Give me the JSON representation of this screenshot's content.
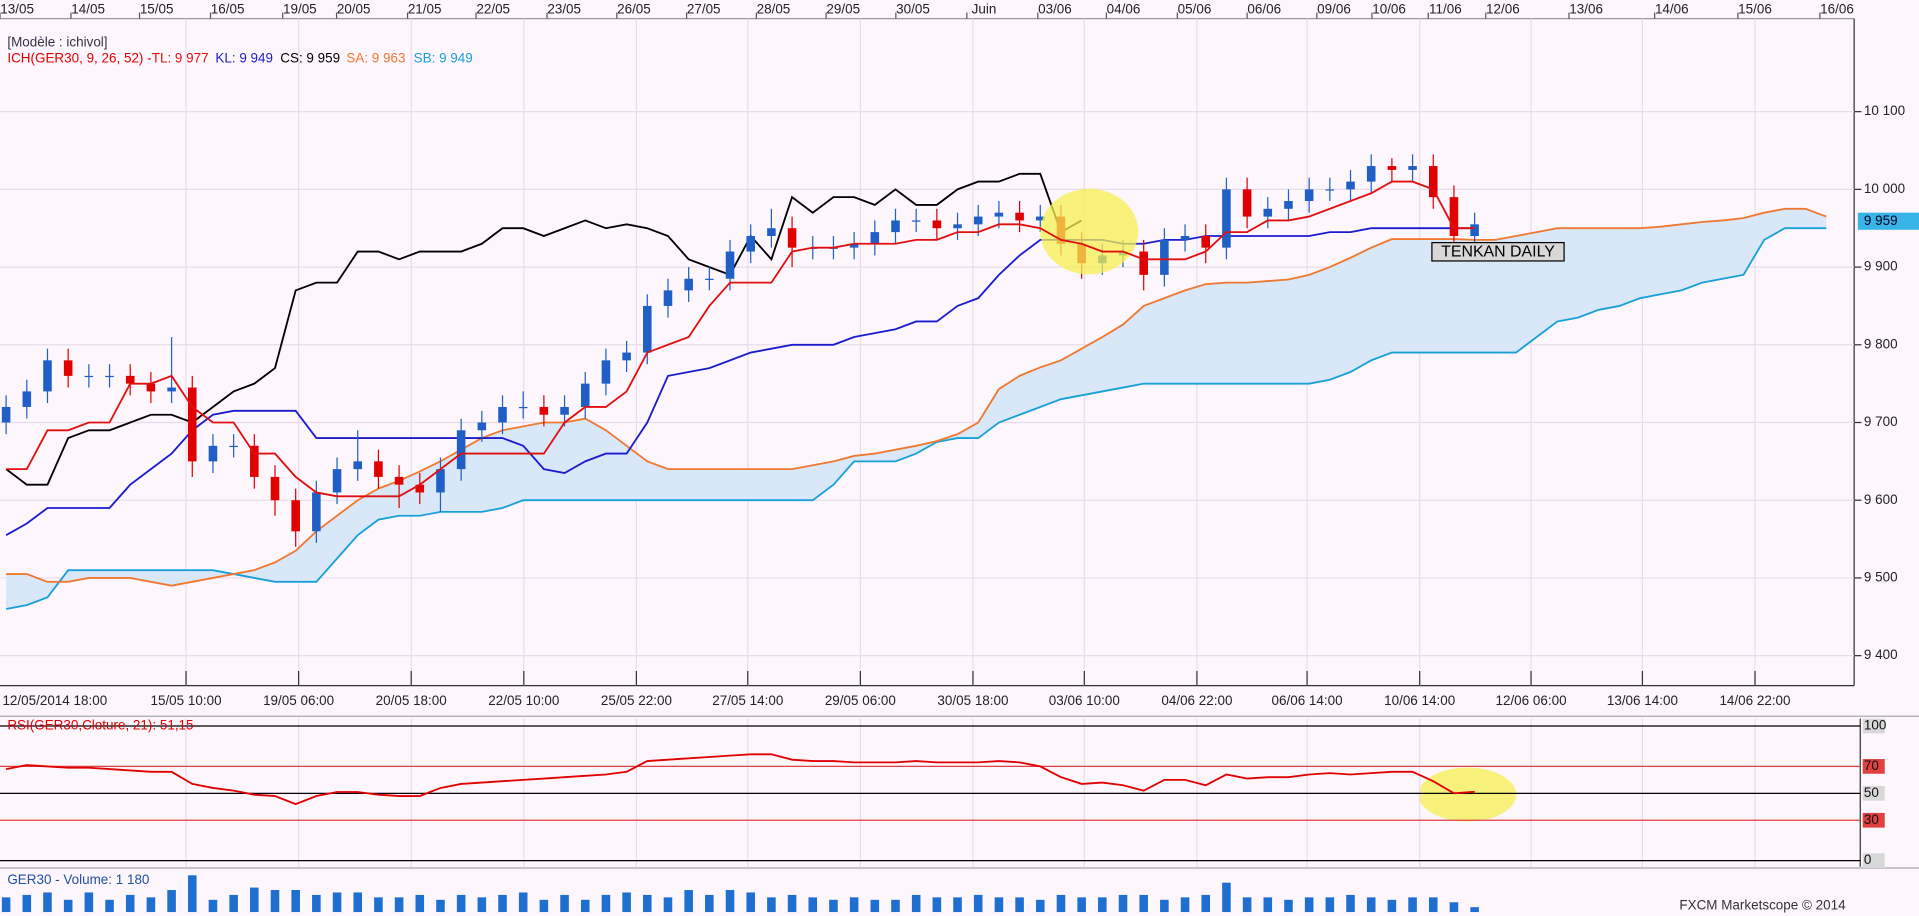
{
  "chart_data": [
    {
      "type": "candlestick",
      "model_label": "[Modèle : ichivol]",
      "legend_prefix": "ICH(GER30, 9, 26, 52) -",
      "top_labels": [
        "13/05",
        "14/05",
        "15/05",
        "16/05",
        "19/05",
        "20/05",
        "21/05",
        "22/05",
        "23/05",
        "26/05",
        "27/05",
        "28/05",
        "29/05",
        "30/05",
        "Juin",
        "03/06",
        "04/06",
        "05/06",
        "06/06",
        "09/06",
        "10/06",
        "11/06",
        "12/06",
        "13/06",
        "14/06",
        "15/06",
        "16/06"
      ],
      "x_labels": [
        "12/05/2014 18:00",
        "15/05 10:00",
        "19/05 06:00",
        "20/05 18:00",
        "22/05 10:00",
        "25/05 22:00",
        "27/05 14:00",
        "29/05 06:00",
        "30/05 18:00",
        "03/06 10:00",
        "04/06 22:00",
        "06/06 14:00",
        "10/06 14:00",
        "12/06 06:00",
        "13/06 14:00",
        "14/06 22:00"
      ],
      "open": [
        9700,
        9720,
        9740,
        9780,
        9760,
        9760,
        9760,
        9750,
        9740,
        9745,
        9650,
        9670,
        9670,
        9630,
        9600,
        9560,
        9610,
        9640,
        9650,
        9630,
        9620,
        9610,
        9640,
        9690,
        9700,
        9720,
        9720,
        9710,
        9720,
        9750,
        9780,
        9790,
        9850,
        9870,
        9885,
        9885,
        9920,
        9940,
        9950,
        9925,
        9925,
        9925,
        9930,
        9945,
        9960,
        9960,
        9950,
        9955,
        9965,
        9970,
        9960,
        9965,
        9930,
        9905,
        9915,
        9920,
        9890,
        9935,
        9940,
        9925,
        10000,
        9965,
        9975,
        9985,
        10000,
        10000,
        10010,
        10030,
        10025,
        10030,
        9990,
        9940
      ],
      "high": [
        9735,
        9755,
        9795,
        9795,
        9775,
        9775,
        9775,
        9765,
        9810,
        9760,
        9685,
        9685,
        9685,
        9645,
        9615,
        9625,
        9655,
        9690,
        9665,
        9645,
        9635,
        9655,
        9705,
        9715,
        9735,
        9740,
        9735,
        9735,
        9765,
        9795,
        9805,
        9865,
        9885,
        9900,
        9900,
        9935,
        9955,
        9975,
        9965,
        9940,
        9940,
        9945,
        9960,
        9975,
        9975,
        9975,
        9970,
        9980,
        9985,
        9985,
        9980,
        9980,
        9945,
        9930,
        9935,
        9935,
        9950,
        9955,
        9955,
        10015,
        10015,
        9990,
        10000,
        10015,
        10015,
        10025,
        10045,
        10040,
        10045,
        10045,
        10005,
        9970
      ],
      "low": [
        9685,
        9705,
        9725,
        9745,
        9745,
        9745,
        9735,
        9725,
        9725,
        9630,
        9635,
        9655,
        9615,
        9580,
        9540,
        9545,
        9595,
        9625,
        9615,
        9590,
        9595,
        9585,
        9625,
        9675,
        9685,
        9705,
        9695,
        9695,
        9705,
        9735,
        9765,
        9775,
        9835,
        9855,
        9870,
        9870,
        9905,
        9925,
        9900,
        9910,
        9910,
        9910,
        9915,
        9930,
        9945,
        9935,
        9935,
        9940,
        9950,
        9945,
        9945,
        9915,
        9885,
        9890,
        9900,
        9870,
        9875,
        9920,
        9905,
        9910,
        9950,
        9950,
        9960,
        9970,
        9985,
        9985,
        9995,
        10010,
        10010,
        9975,
        9925,
        9930
      ],
      "close": [
        9720,
        9740,
        9780,
        9760,
        9760,
        9760,
        9750,
        9740,
        9745,
        9650,
        9670,
        9670,
        9630,
        9600,
        9560,
        9610,
        9640,
        9650,
        9630,
        9620,
        9610,
        9640,
        9690,
        9700,
        9720,
        9720,
        9710,
        9720,
        9750,
        9780,
        9790,
        9850,
        9870,
        9885,
        9885,
        9920,
        9940,
        9950,
        9925,
        9925,
        9925,
        9930,
        9945,
        9960,
        9960,
        9950,
        9955,
        9965,
        9970,
        9960,
        9965,
        9930,
        9905,
        9915,
        9920,
        9890,
        9935,
        9940,
        9925,
        10000,
        9965,
        9975,
        9985,
        10000,
        10000,
        10010,
        10030,
        10025,
        10030,
        9990,
        9940,
        9955
      ],
      "up_color": "#1f5fc6",
      "down_color": "#e00000",
      "series": [
        {
          "name": "SB: 9 949",
          "color": "#1aa0d8",
          "values": [
            9460,
            9465,
            9475,
            9510,
            9510,
            9510,
            9510,
            9510,
            9510,
            9510,
            9510,
            9505,
            9500,
            9495,
            9495,
            9495,
            9525,
            9555,
            9575,
            9580,
            9580,
            9585,
            9585,
            9585,
            9590,
            9600,
            9600,
            9600,
            9600,
            9600,
            9600,
            9600,
            9600,
            9600,
            9600,
            9600,
            9600,
            9600,
            9600,
            9600,
            9620,
            9650,
            9650,
            9650,
            9660,
            9675,
            9680,
            9680,
            9700,
            9710,
            9720,
            9730,
            9735,
            9740,
            9745,
            9750,
            9750,
            9750,
            9750,
            9750,
            9750,
            9750,
            9750,
            9750,
            9755,
            9765,
            9780,
            9790,
            9790,
            9790,
            9790,
            9790,
            9790,
            9790,
            9810,
            9830,
            9835,
            9845,
            9850,
            9860,
            9865,
            9870,
            9880,
            9885,
            9890,
            9935,
            9950,
            9950,
            9950
          ]
        },
        {
          "name": "SA: 9 963",
          "color": "#f07830",
          "values": [
            9505,
            9505,
            9495,
            9495,
            9500,
            9500,
            9500,
            9495,
            9490,
            9495,
            9500,
            9505,
            9510,
            9520,
            9535,
            9560,
            9580,
            9600,
            9615,
            9625,
            9637,
            9650,
            9665,
            9680,
            9690,
            9695,
            9700,
            9700,
            9705,
            9690,
            9670,
            9650,
            9640,
            9640,
            9640,
            9640,
            9640,
            9640,
            9640,
            9645,
            9650,
            9657,
            9660,
            9665,
            9670,
            9676,
            9685,
            9700,
            9743,
            9760,
            9771,
            9780,
            9795,
            9810,
            9826,
            9850,
            9860,
            9870,
            9878,
            9880,
            9880,
            9882,
            9884,
            9890,
            9900,
            9912,
            9925,
            9936,
            9936,
            9936,
            9936,
            9935,
            9935,
            9940,
            9945,
            9950,
            9950,
            9950,
            9950,
            9950,
            9952,
            9955,
            9958,
            9960,
            9963,
            9970,
            9975,
            9975,
            9965
          ]
        },
        {
          "name": "CS: 9 959",
          "color": "#000000",
          "values": [
            9640,
            9620,
            9620,
            9680,
            9690,
            9690,
            9700,
            9710,
            9710,
            9700,
            9720,
            9740,
            9750,
            9770,
            9870,
            9880,
            9880,
            9920,
            9920,
            9910,
            9920,
            9920,
            9920,
            9930,
            9950,
            9950,
            9940,
            9950,
            9960,
            9950,
            9955,
            9950,
            9940,
            9910,
            9900,
            9890,
            9940,
            9910,
            9990,
            9970,
            9990,
            9990,
            9980,
            10000,
            9980,
            9980,
            10000,
            10010,
            10010,
            10020,
            10020,
            9945,
            9960,
            null,
            null,
            null,
            null,
            null,
            null,
            null,
            null,
            null,
            null,
            null,
            null,
            null,
            null,
            null,
            null,
            null,
            null,
            null,
            null,
            null,
            null,
            null,
            null,
            null,
            null,
            null,
            null,
            null,
            null,
            null,
            null,
            null,
            null,
            null,
            null
          ]
        },
        {
          "name": "KL: 9 949",
          "color": "#1c1ccc",
          "values": [
            9555,
            9570,
            9590,
            9590,
            9590,
            9590,
            9620,
            9640,
            9660,
            9690,
            9710,
            9715,
            9715,
            9715,
            9715,
            9680,
            9680,
            9680,
            9680,
            9680,
            9680,
            9680,
            9680,
            9680,
            9680,
            9670,
            9640,
            9635,
            9650,
            9660,
            9660,
            9700,
            9760,
            9765,
            9770,
            9780,
            9790,
            9795,
            9800,
            9800,
            9800,
            9810,
            9815,
            9820,
            9830,
            9830,
            9850,
            9860,
            9890,
            9915,
            9935,
            9935,
            9935,
            9935,
            9930,
            9930,
            9935,
            9935,
            9940,
            9940,
            9940,
            9940,
            9940,
            9940,
            9945,
            9945,
            9950,
            9950,
            9950,
            9950,
            9950,
            9950,
            null,
            null,
            null,
            null,
            null,
            null,
            null,
            null,
            null,
            null,
            null,
            null,
            null,
            null,
            null,
            null,
            null
          ]
        },
        {
          "name": "TL: 9 977",
          "color": "#e01010",
          "values": [
            9640,
            9640,
            9690,
            9690,
            9700,
            9700,
            9750,
            9750,
            9760,
            9720,
            9700,
            9700,
            9660,
            9660,
            9630,
            9610,
            9605,
            9605,
            9605,
            9605,
            9620,
            9640,
            9660,
            9660,
            9660,
            9660,
            9660,
            9700,
            9720,
            9720,
            9740,
            9790,
            9800,
            9810,
            9850,
            9880,
            9880,
            9880,
            9920,
            9925,
            9925,
            9930,
            9930,
            9930,
            9935,
            9935,
            9945,
            9945,
            9955,
            9955,
            9950,
            9935,
            9930,
            9920,
            9920,
            9910,
            9910,
            9910,
            9920,
            9945,
            9945,
            9960,
            9960,
            9965,
            9975,
            9985,
            9995,
            10010,
            10010,
            10000,
            9950,
            9950,
            null,
            null,
            null,
            null,
            null,
            null,
            null,
            null,
            null,
            null,
            null,
            null,
            null,
            null,
            null,
            null,
            null
          ]
        }
      ],
      "cloud_color": "#d8e8f8",
      "ylim": [
        9380,
        10200
      ],
      "yticks": [
        {
          "value": 9400,
          "label": "9 400"
        },
        {
          "value": 9500,
          "label": "9 500"
        },
        {
          "value": 9600,
          "label": "9 600"
        },
        {
          "value": 9700,
          "label": "9 700"
        },
        {
          "value": 9800,
          "label": "9 800"
        },
        {
          "value": 9900,
          "label": "9 900"
        },
        {
          "value": 10000,
          "label": "10 000"
        },
        {
          "value": 10100,
          "label": "10 100"
        }
      ],
      "last_price": {
        "value": 9959,
        "label": "9 959"
      },
      "annotation": "TENKAN DAILY",
      "grid": true
    },
    {
      "type": "line",
      "title": "RSI(GER30,Cloture, 21): 51,15",
      "color": "#e00000",
      "values": [
        68,
        71,
        70,
        69,
        69,
        68,
        67,
        66,
        66,
        57,
        54,
        52,
        49,
        48,
        42,
        48,
        51,
        51,
        49,
        48,
        48,
        54,
        57,
        58,
        59,
        60,
        61,
        62,
        63,
        64,
        66,
        74,
        75,
        76,
        77,
        78,
        79,
        79,
        75,
        74,
        74,
        73,
        73,
        73,
        74,
        73,
        73,
        73,
        74,
        73,
        70,
        62,
        57,
        58,
        56,
        52,
        60,
        60,
        56,
        64,
        61,
        62,
        62,
        64,
        65,
        64,
        65,
        66,
        66,
        59,
        50,
        51.15
      ],
      "ylim": [
        0,
        100
      ],
      "yticks": [
        0,
        30,
        50,
        70,
        100
      ],
      "grid_colors": [
        "#000000",
        "#e04040",
        "#000000",
        "#e04040",
        "#000000"
      ]
    },
    {
      "type": "bar",
      "title": "GER30 - Volume: 1 180",
      "color": "#1f6fd0",
      "values": [
        3540,
        4130,
        4720,
        2950,
        4720,
        2950,
        4130,
        3540,
        5310,
        8850,
        2950,
        4130,
        5900,
        5310,
        5310,
        4130,
        4720,
        4720,
        3540,
        3540,
        4130,
        2950,
        4130,
        3540,
        4130,
        4720,
        2950,
        4130,
        2950,
        4130,
        4720,
        4130,
        3540,
        5310,
        4130,
        5310,
        4720,
        3540,
        4130,
        3540,
        2950,
        3540,
        2950,
        2950,
        4130,
        3540,
        3540,
        4130,
        3540,
        3540,
        2950,
        4130,
        3540,
        3540,
        4130,
        4130,
        2950,
        3540,
        4130,
        7080,
        3540,
        3540,
        2950,
        3540,
        3540,
        4130,
        3540,
        2950,
        3540,
        3540,
        2360,
        1180
      ]
    }
  ],
  "footer": "FXCM Marketscope © 2014"
}
